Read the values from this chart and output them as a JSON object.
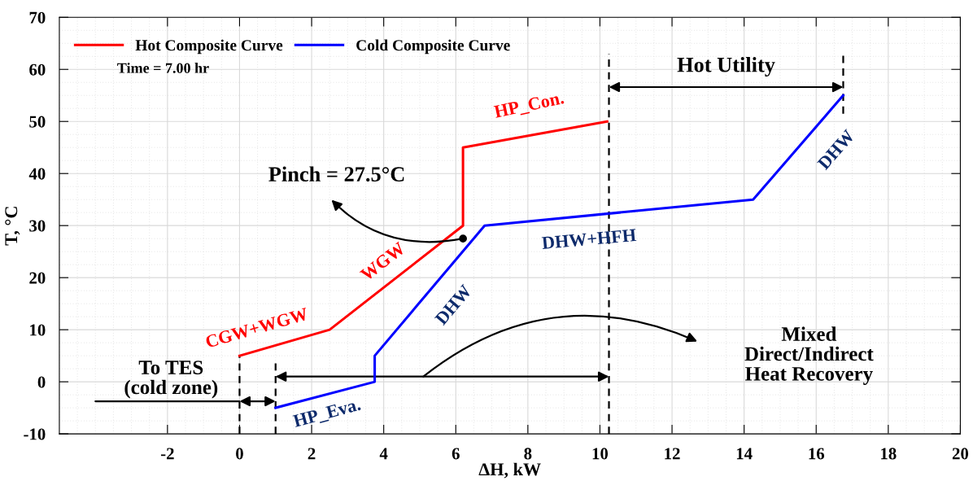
{
  "chart_data": {
    "type": "line",
    "xlabel": "ΔH, kW",
    "ylabel": "T, °C",
    "xlim": [
      -5,
      20
    ],
    "xticks": [
      -2,
      0,
      2,
      4,
      6,
      8,
      10,
      12,
      14,
      16,
      18,
      20
    ],
    "ylim": [
      -10,
      70
    ],
    "yticks": [
      -10,
      0,
      10,
      20,
      30,
      40,
      50,
      60,
      70
    ],
    "grid": true,
    "legend": "top left",
    "line_style": "solid",
    "marker": "none",
    "series": [
      {
        "name": "Hot Composite Curve",
        "color": "#ff0000",
        "x": [
          0,
          2.5,
          6.2,
          6.2,
          10.2
        ],
        "values": [
          5,
          10,
          30,
          45,
          50
        ]
      },
      {
        "name": "Cold Composite Curve",
        "color": "#0000ff",
        "x": [
          1,
          3.75,
          3.75,
          6.8,
          14.25,
          16.75
        ],
        "values": [
          -5,
          0,
          5,
          30,
          35,
          55
        ]
      },
      {
        "color": "#000000",
        "line_style": "dashed",
        "x": [
          0,
          0
        ],
        "values": [
          -10,
          5
        ]
      },
      {
        "color": "#000000",
        "line_style": "dashed",
        "x": [
          1,
          1
        ],
        "values": [
          -10,
          4
        ]
      },
      {
        "color": "#000000",
        "line_style": "dashed",
        "x": [
          10.25,
          10.25
        ],
        "values": [
          -10,
          63
        ]
      },
      {
        "color": "#000000",
        "line_style": "dashed",
        "x": [
          16.75,
          16.75
        ],
        "values": [
          51.5,
          63
        ]
      }
    ],
    "annotations": [
      "Time = 7.00 hr",
      {
        "text": "Pinch = 27.5°C",
        "x": 6.2,
        "y": 27.5
      },
      "Hot Utility",
      "To TES\n(cold zone)",
      "Mixed\nDirect/Indirect\nHeat Recovery",
      {
        "text": "HP_Con.",
        "x": 8.2,
        "y": 47.5
      },
      {
        "text": "DHW+HFH",
        "x": 9.7,
        "y": 31.9
      },
      {
        "text": "DHW",
        "x": 15.8,
        "y": 47
      },
      {
        "text": "WGW",
        "x": 4,
        "y": 18.1
      },
      {
        "text": "CGW+WGW",
        "x": 0.8,
        "y": 6.6
      },
      {
        "text": "DHW",
        "x": 5.4,
        "y": 18.5
      },
      {
        "text": "HP_Eva.",
        "x": 2.5,
        "y": -2.3
      }
    ]
  }
}
